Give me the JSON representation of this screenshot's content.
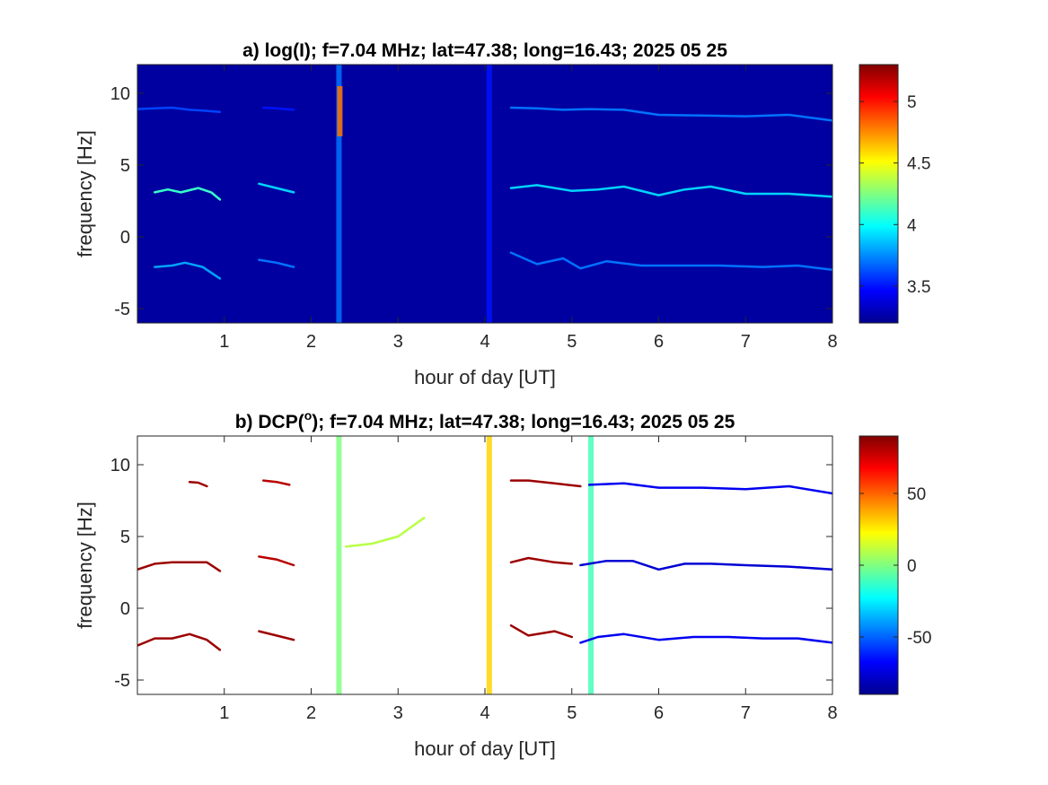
{
  "chart_data": [
    {
      "type": "heatmap",
      "panel": "a",
      "title": "a) log(I); f=7.04 MHz;  lat=47.38; long=16.43; 2025 05 25",
      "xlabel": "hour of day [UT]",
      "ylabel": "frequency [Hz]",
      "xlim": [
        0,
        8
      ],
      "ylim": [
        -6,
        12
      ],
      "xticks": [
        "1",
        "2",
        "3",
        "4",
        "5",
        "6",
        "7",
        "8"
      ],
      "yticks": [
        "-5",
        "0",
        "5",
        "10"
      ],
      "colorbar": {
        "range": [
          3.2,
          5.3
        ],
        "ticks": [
          "3.5",
          "4",
          "4.5",
          "5"
        ],
        "colormap": "jet"
      },
      "background_value": 3.25,
      "traces": [
        {
          "name_hint": "upper-early",
          "x": [
            0.0,
            0.2,
            0.4,
            0.6,
            0.75,
            0.95
          ],
          "y": [
            8.9,
            8.95,
            9.0,
            8.85,
            8.8,
            8.7
          ],
          "value": 3.6
        },
        {
          "name_hint": "upper-early-2",
          "x": [
            1.45,
            1.6,
            1.8
          ],
          "y": [
            9.0,
            8.95,
            8.85
          ],
          "value": 3.5
        },
        {
          "name_hint": "upper-late",
          "x": [
            4.3,
            4.6,
            4.9,
            5.2,
            5.6,
            6.0,
            6.5,
            7.0,
            7.5,
            8.0
          ],
          "y": [
            9.0,
            8.95,
            8.85,
            8.9,
            8.85,
            8.5,
            8.45,
            8.4,
            8.5,
            8.1
          ],
          "value": 3.7
        },
        {
          "name_hint": "middle-early",
          "x": [
            0.2,
            0.35,
            0.5,
            0.7,
            0.85,
            0.95
          ],
          "y": [
            3.1,
            3.3,
            3.1,
            3.4,
            3.1,
            2.6
          ],
          "value": 4.1
        },
        {
          "name_hint": "middle-early-2",
          "x": [
            1.4,
            1.6,
            1.8
          ],
          "y": [
            3.7,
            3.4,
            3.1
          ],
          "value": 3.9
        },
        {
          "name_hint": "middle-late",
          "x": [
            4.3,
            4.6,
            5.0,
            5.3,
            5.6,
            6.0,
            6.3,
            6.6,
            7.0,
            7.5,
            8.0
          ],
          "y": [
            3.4,
            3.6,
            3.2,
            3.3,
            3.5,
            2.9,
            3.3,
            3.5,
            3.0,
            3.0,
            2.8
          ],
          "value": 3.9
        },
        {
          "name_hint": "lower-early",
          "x": [
            0.2,
            0.4,
            0.55,
            0.75,
            0.95
          ],
          "y": [
            -2.1,
            -2.0,
            -1.8,
            -2.1,
            -2.9
          ],
          "value": 3.8
        },
        {
          "name_hint": "lower-early-2",
          "x": [
            1.4,
            1.6,
            1.8
          ],
          "y": [
            -1.6,
            -1.8,
            -2.1
          ],
          "value": 3.7
        },
        {
          "name_hint": "lower-late",
          "x": [
            4.3,
            4.6,
            4.9,
            5.1,
            5.4,
            5.8,
            6.2,
            6.7,
            7.2,
            7.6,
            8.0
          ],
          "y": [
            -1.1,
            -1.9,
            -1.5,
            -2.2,
            -1.7,
            -2.0,
            -2.0,
            -2.0,
            -2.1,
            -2.0,
            -2.3
          ],
          "value": 3.7
        }
      ],
      "bursts": [
        {
          "x": 2.32,
          "ylow": -6,
          "yhigh": 12,
          "value": 3.7
        },
        {
          "x": 2.33,
          "ylow": 7.0,
          "yhigh": 10.5,
          "value": 4.8
        },
        {
          "x": 4.05,
          "ylow": -6,
          "yhigh": 12,
          "value": 3.5
        }
      ]
    },
    {
      "type": "heatmap",
      "panel": "b",
      "title": "b) DCP(°); f=7.04 MHz;  lat=47.38; long=16.43; 2025 05 25",
      "title_main": "b) DCP(",
      "title_sup": "o",
      "title_rest": "); f=7.04 MHz;  lat=47.38; long=16.43; 2025 05 25",
      "xlabel": "hour of day [UT]",
      "ylabel": "frequency [Hz]",
      "xlim": [
        0,
        8
      ],
      "ylim": [
        -6,
        12
      ],
      "xticks": [
        "1",
        "2",
        "3",
        "4",
        "5",
        "6",
        "7",
        "8"
      ],
      "yticks": [
        "-5",
        "0",
        "5",
        "10"
      ],
      "colorbar": {
        "range": [
          -90,
          90
        ],
        "ticks": [
          "-50",
          "0",
          "50"
        ],
        "colormap": "jet"
      },
      "traces": [
        {
          "name_hint": "upper-early",
          "x": [
            0.6,
            0.7,
            0.8
          ],
          "y": [
            8.8,
            8.75,
            8.5
          ],
          "value": 85
        },
        {
          "name_hint": "upper-early-2",
          "x": [
            1.45,
            1.6,
            1.75
          ],
          "y": [
            8.9,
            8.8,
            8.6
          ],
          "value": 80
        },
        {
          "name_hint": "upper-late-red",
          "x": [
            4.3,
            4.5,
            4.8,
            5.1
          ],
          "y": [
            8.9,
            8.9,
            8.7,
            8.5
          ],
          "value": 85
        },
        {
          "name_hint": "upper-late-mix",
          "x": [
            5.2,
            5.6,
            6.0,
            6.5,
            7.0,
            7.5,
            8.0
          ],
          "y": [
            8.6,
            8.7,
            8.4,
            8.4,
            8.3,
            8.5,
            8.0
          ],
          "value": -70
        },
        {
          "name_hint": "middle-early",
          "x": [
            0.0,
            0.2,
            0.4,
            0.6,
            0.8,
            0.95
          ],
          "y": [
            2.7,
            3.1,
            3.2,
            3.2,
            3.2,
            2.6
          ],
          "value": 85
        },
        {
          "name_hint": "middle-early-2",
          "x": [
            1.4,
            1.6,
            1.8
          ],
          "y": [
            3.6,
            3.4,
            3.0
          ],
          "value": 80
        },
        {
          "name_hint": "middle-late-red",
          "x": [
            4.3,
            4.5,
            4.8,
            5.0
          ],
          "y": [
            3.2,
            3.5,
            3.2,
            3.1
          ],
          "value": 85
        },
        {
          "name_hint": "middle-late-mix",
          "x": [
            5.1,
            5.4,
            5.7,
            6.0,
            6.3,
            6.6,
            7.0,
            7.5,
            8.0
          ],
          "y": [
            3.0,
            3.3,
            3.3,
            2.7,
            3.1,
            3.1,
            3.0,
            2.9,
            2.7
          ],
          "value": -75
        },
        {
          "name_hint": "lower-early",
          "x": [
            0.0,
            0.2,
            0.4,
            0.6,
            0.8,
            0.95
          ],
          "y": [
            -2.6,
            -2.1,
            -2.1,
            -1.8,
            -2.2,
            -2.9
          ],
          "value": 85
        },
        {
          "name_hint": "lower-early-2",
          "x": [
            1.4,
            1.6,
            1.8
          ],
          "y": [
            -1.6,
            -1.9,
            -2.2
          ],
          "value": 85
        },
        {
          "name_hint": "lower-late-red",
          "x": [
            4.3,
            4.5,
            4.8,
            5.0
          ],
          "y": [
            -1.2,
            -1.9,
            -1.6,
            -2.0
          ],
          "value": 85
        },
        {
          "name_hint": "lower-late-mix",
          "x": [
            5.1,
            5.3,
            5.6,
            6.0,
            6.4,
            6.8,
            7.2,
            7.6,
            8.0
          ],
          "y": [
            -2.4,
            -2.0,
            -1.8,
            -2.2,
            -2.0,
            -2.0,
            -2.1,
            -2.1,
            -2.4
          ],
          "value": -70
        },
        {
          "name_hint": "faint-arc",
          "x": [
            2.4,
            2.7,
            3.0,
            3.3
          ],
          "y": [
            4.3,
            4.5,
            5.0,
            6.3
          ],
          "value": 10
        }
      ],
      "bursts": [
        {
          "x": 2.32,
          "ylow": -6,
          "yhigh": 12,
          "value": 0
        },
        {
          "x": 4.05,
          "ylow": -6,
          "yhigh": 12,
          "value": 30
        },
        {
          "x": 5.22,
          "ylow": -6,
          "yhigh": 12,
          "value": -10
        }
      ]
    }
  ]
}
